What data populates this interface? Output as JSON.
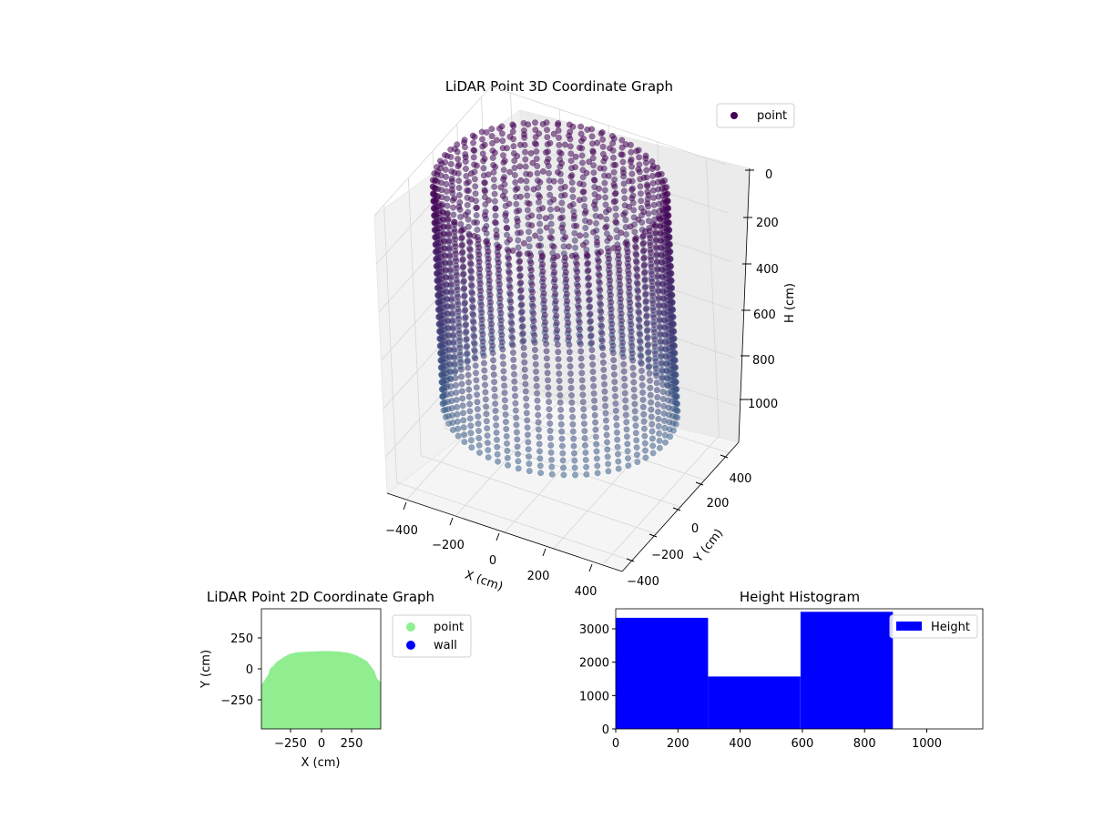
{
  "chart_data": [
    {
      "type": "scatter",
      "projection": "3d",
      "title": "LiDAR Point 3D Coordinate Graph",
      "xlabel": "X (cm)",
      "ylabel": "Y (cm)",
      "zlabel": "H (cm)",
      "x_ticks": [
        "−400",
        "−200",
        "0",
        "200",
        "400"
      ],
      "y_ticks": [
        "−400",
        "−200",
        "0",
        "200",
        "400"
      ],
      "z_ticks": [
        "0",
        "200",
        "400",
        "600",
        "800",
        "1000"
      ],
      "xlim": [
        -480,
        480
      ],
      "ylim": [
        -480,
        480
      ],
      "zlim": [
        1150,
        0
      ],
      "z_inverted": true,
      "grid": true,
      "legend": {
        "position": "top-right",
        "entries": [
          {
            "name": "point",
            "color": "#440154"
          }
        ]
      },
      "series": [
        {
          "name": "point",
          "shape": "vertical cylinder of scan columns",
          "radius": 430,
          "center": [
            0,
            0
          ],
          "h_range": [
            0,
            900
          ],
          "colormap": "viridis (dark purple at top, steel blue at bottom)",
          "color_top": "#440154",
          "color_bottom": "#3b5f8a"
        }
      ]
    },
    {
      "type": "scatter",
      "title": "LiDAR Point 2D Coordinate Graph",
      "xlabel": "X (cm)",
      "ylabel": "Y (cm)",
      "x_ticks": [
        "−250",
        "0",
        "250"
      ],
      "y_ticks": [
        "250",
        "0",
        "−250"
      ],
      "xlim": [
        -490,
        490
      ],
      "ylim": [
        -490,
        490
      ],
      "legend": {
        "position": "right",
        "entries": [
          {
            "name": "point",
            "color": "#90ee90"
          },
          {
            "name": "wall",
            "color": "#0000ff"
          }
        ]
      },
      "series": [
        {
          "name": "point",
          "color": "#90ee90",
          "fill_outline": [
            [
              -490,
              -490
            ],
            [
              -490,
              -130
            ],
            [
              -455,
              -80
            ],
            [
              -430,
              -40
            ],
            [
              -420,
              0
            ],
            [
              -395,
              20
            ],
            [
              -380,
              40
            ],
            [
              -360,
              60
            ],
            [
              -330,
              80
            ],
            [
              -300,
              100
            ],
            [
              -260,
              120
            ],
            [
              -200,
              135
            ],
            [
              -120,
              140
            ],
            [
              0,
              145
            ],
            [
              80,
              145
            ],
            [
              160,
              140
            ],
            [
              230,
              130
            ],
            [
              290,
              110
            ],
            [
              340,
              85
            ],
            [
              380,
              60
            ],
            [
              410,
              20
            ],
            [
              440,
              -20
            ],
            [
              460,
              -80
            ],
            [
              490,
              -110
            ],
            [
              490,
              -490
            ]
          ]
        },
        {
          "name": "wall",
          "color": "#0000ff",
          "points": []
        }
      ]
    },
    {
      "type": "bar",
      "subtype": "histogram",
      "title": "Height Histogram",
      "xlabel": "",
      "ylabel": "",
      "x_ticks": [
        "0",
        "200",
        "400",
        "600",
        "800",
        "1000"
      ],
      "y_ticks": [
        "0",
        "1000",
        "2000",
        "3000"
      ],
      "xlim": [
        0,
        1180
      ],
      "ylim": [
        0,
        3600
      ],
      "bar_color": "#0000ff",
      "legend": {
        "position": "top-right",
        "entries": [
          {
            "name": "Height",
            "color": "#0000ff"
          }
        ]
      },
      "bins": [
        {
          "x0": 0,
          "x1": 297,
          "count": 3330
        },
        {
          "x0": 297,
          "x1": 594,
          "count": 1570
        },
        {
          "x0": 594,
          "x1": 891,
          "count": 3510
        }
      ]
    }
  ]
}
